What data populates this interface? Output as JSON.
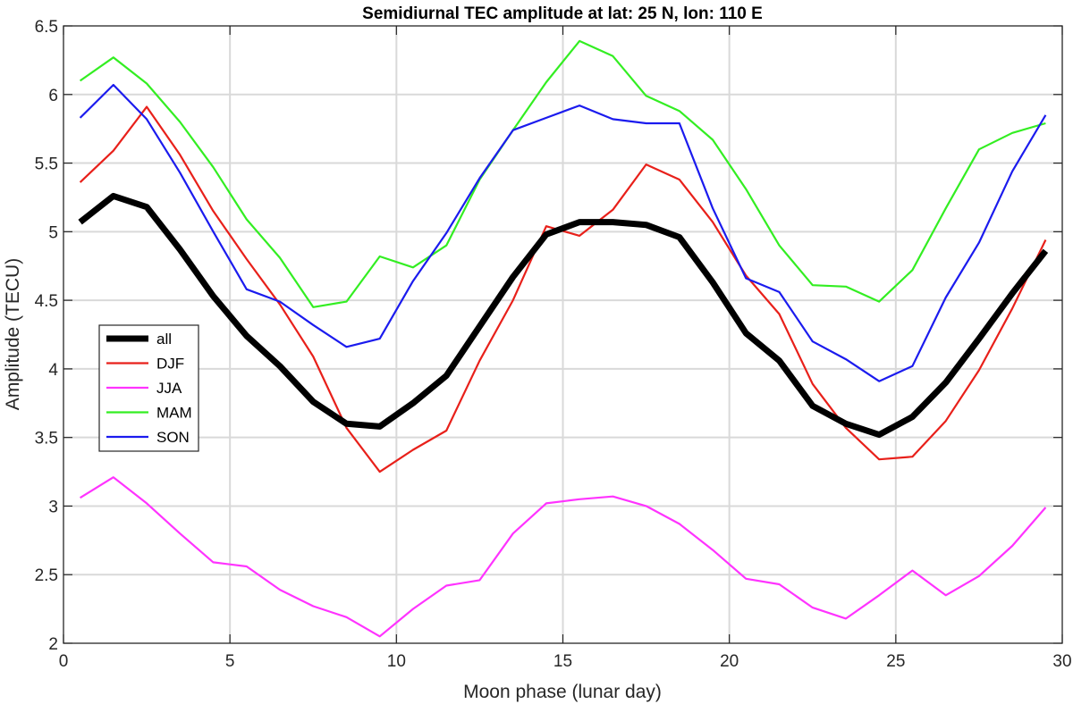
{
  "chart_data": {
    "type": "line",
    "title": "Semidiurnal TEC amplitude at lat: 25 N, lon: 110 E",
    "xlabel": "Moon phase (lunar day)",
    "ylabel": "Amplitude (TECU)",
    "xlim": [
      0,
      30
    ],
    "ylim": [
      2,
      6.5
    ],
    "xticks": [
      0,
      5,
      10,
      15,
      20,
      25,
      30
    ],
    "yticks": [
      2,
      2.5,
      3,
      3.5,
      4,
      4.5,
      5,
      5.5,
      6,
      6.5
    ],
    "grid": true,
    "legend_position": "middle-left",
    "x": [
      0.5,
      1.5,
      2.5,
      3.5,
      4.5,
      5.5,
      6.5,
      7.5,
      8.5,
      9.5,
      10.5,
      11.5,
      12.5,
      13.5,
      14.5,
      15.5,
      16.5,
      17.5,
      18.5,
      19.5,
      20.5,
      21.5,
      22.5,
      23.5,
      24.5,
      25.5,
      26.5,
      27.5,
      28.5,
      29.5
    ],
    "series": [
      {
        "name": "all",
        "color": "#000000",
        "values": [
          5.07,
          5.26,
          5.18,
          4.87,
          4.53,
          4.24,
          4.02,
          3.76,
          3.6,
          3.58,
          3.75,
          3.95,
          4.31,
          4.67,
          4.98,
          5.07,
          5.07,
          5.05,
          4.96,
          4.63,
          4.26,
          4.06,
          3.73,
          3.6,
          3.52,
          3.65,
          3.9,
          4.22,
          4.55,
          4.86
        ]
      },
      {
        "name": "DJF",
        "color": "#e8201a",
        "values": [
          5.36,
          5.59,
          5.91,
          5.56,
          5.15,
          4.8,
          4.47,
          4.09,
          3.57,
          3.25,
          3.41,
          3.55,
          4.06,
          4.5,
          5.04,
          4.97,
          5.16,
          5.49,
          5.38,
          5.07,
          4.68,
          4.4,
          3.89,
          3.57,
          3.34,
          3.36,
          3.62,
          3.99,
          4.44,
          4.94
        ]
      },
      {
        "name": "JJA",
        "color": "#ff33ff",
        "values": [
          3.06,
          3.21,
          3.02,
          2.8,
          2.59,
          2.56,
          2.39,
          2.27,
          2.19,
          2.05,
          2.25,
          2.42,
          2.46,
          2.8,
          3.02,
          3.05,
          3.07,
          3.0,
          2.87,
          2.68,
          2.47,
          2.43,
          2.26,
          2.18,
          2.35,
          2.53,
          2.35,
          2.49,
          2.71,
          2.99
        ]
      },
      {
        "name": "MAM",
        "color": "#33ee22",
        "values": [
          6.1,
          6.27,
          6.08,
          5.8,
          5.47,
          5.09,
          4.81,
          4.45,
          4.49,
          4.82,
          4.74,
          4.9,
          5.38,
          5.74,
          6.09,
          6.39,
          6.28,
          5.99,
          5.88,
          5.67,
          5.31,
          4.9,
          4.61,
          4.6,
          4.49,
          4.72,
          5.17,
          5.6,
          5.72,
          5.79
        ]
      },
      {
        "name": "SON",
        "color": "#1b1bee",
        "values": [
          5.83,
          6.07,
          5.82,
          5.43,
          5.0,
          4.58,
          4.49,
          4.32,
          4.16,
          4.22,
          4.64,
          4.99,
          5.39,
          5.74,
          5.83,
          5.92,
          5.82,
          5.79,
          5.79,
          5.17,
          4.66,
          4.56,
          4.2,
          4.07,
          3.91,
          4.02,
          4.52,
          4.92,
          5.44,
          5.85
        ]
      }
    ]
  }
}
